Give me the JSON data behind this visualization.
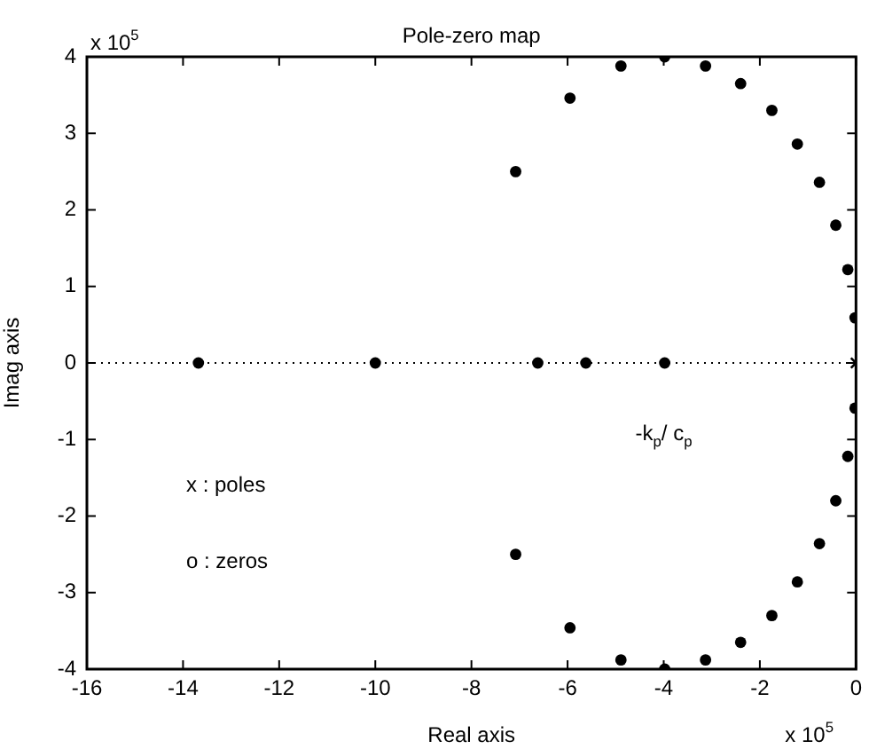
{
  "chart_data": {
    "type": "scatter",
    "title": "Pole-zero map",
    "xlabel": "Real axis",
    "ylabel": "Imag axis",
    "series": [
      {
        "color": "#000000",
        "marker": "circle",
        "x": [
          -7.08,
          -5.95,
          -4.89,
          -3.98,
          -3.13,
          -2.4,
          -1.75,
          -1.22,
          -0.76,
          -0.42,
          -0.17,
          -0.02,
          -13.68,
          -10.0,
          -6.62,
          -5.62,
          -3.98,
          -7.08,
          -5.95,
          -4.89,
          -3.98,
          -3.13,
          -2.4,
          -1.75,
          -1.22,
          -0.76,
          -0.42,
          -0.17,
          -0.02
        ],
        "values": [
          2.5,
          3.46,
          3.88,
          4.0,
          3.88,
          3.65,
          3.3,
          2.86,
          2.36,
          1.8,
          1.22,
          0.59,
          0,
          0,
          0,
          0,
          0,
          -2.5,
          -3.46,
          -3.88,
          -4.0,
          -3.88,
          -3.65,
          -3.3,
          -2.86,
          -2.36,
          -1.8,
          -1.22,
          -0.59
        ]
      },
      {
        "color": "#000000",
        "marker": "cross",
        "x": [
          0
        ],
        "values": [
          0
        ]
      }
    ],
    "xlim": [
      -16,
      0
    ],
    "xticks": [
      -16,
      -14,
      -12,
      -10,
      -8,
      -6,
      -4,
      -2,
      0
    ],
    "ylim": [
      -4,
      4
    ],
    "yticks": [
      -4,
      -3,
      -2,
      -1,
      0,
      1,
      2,
      3,
      4
    ],
    "grid": false,
    "legend": false,
    "ref_lines": [
      {
        "axis": "y",
        "value": 0,
        "line_style": "dotted",
        "color": "#000000"
      }
    ],
    "annotations": [
      "x 10$^{5}$",
      "x 10$^{5}$",
      "x : poles",
      "o : zeros",
      "-k$_{p}$/ c$_{p}$"
    ]
  }
}
